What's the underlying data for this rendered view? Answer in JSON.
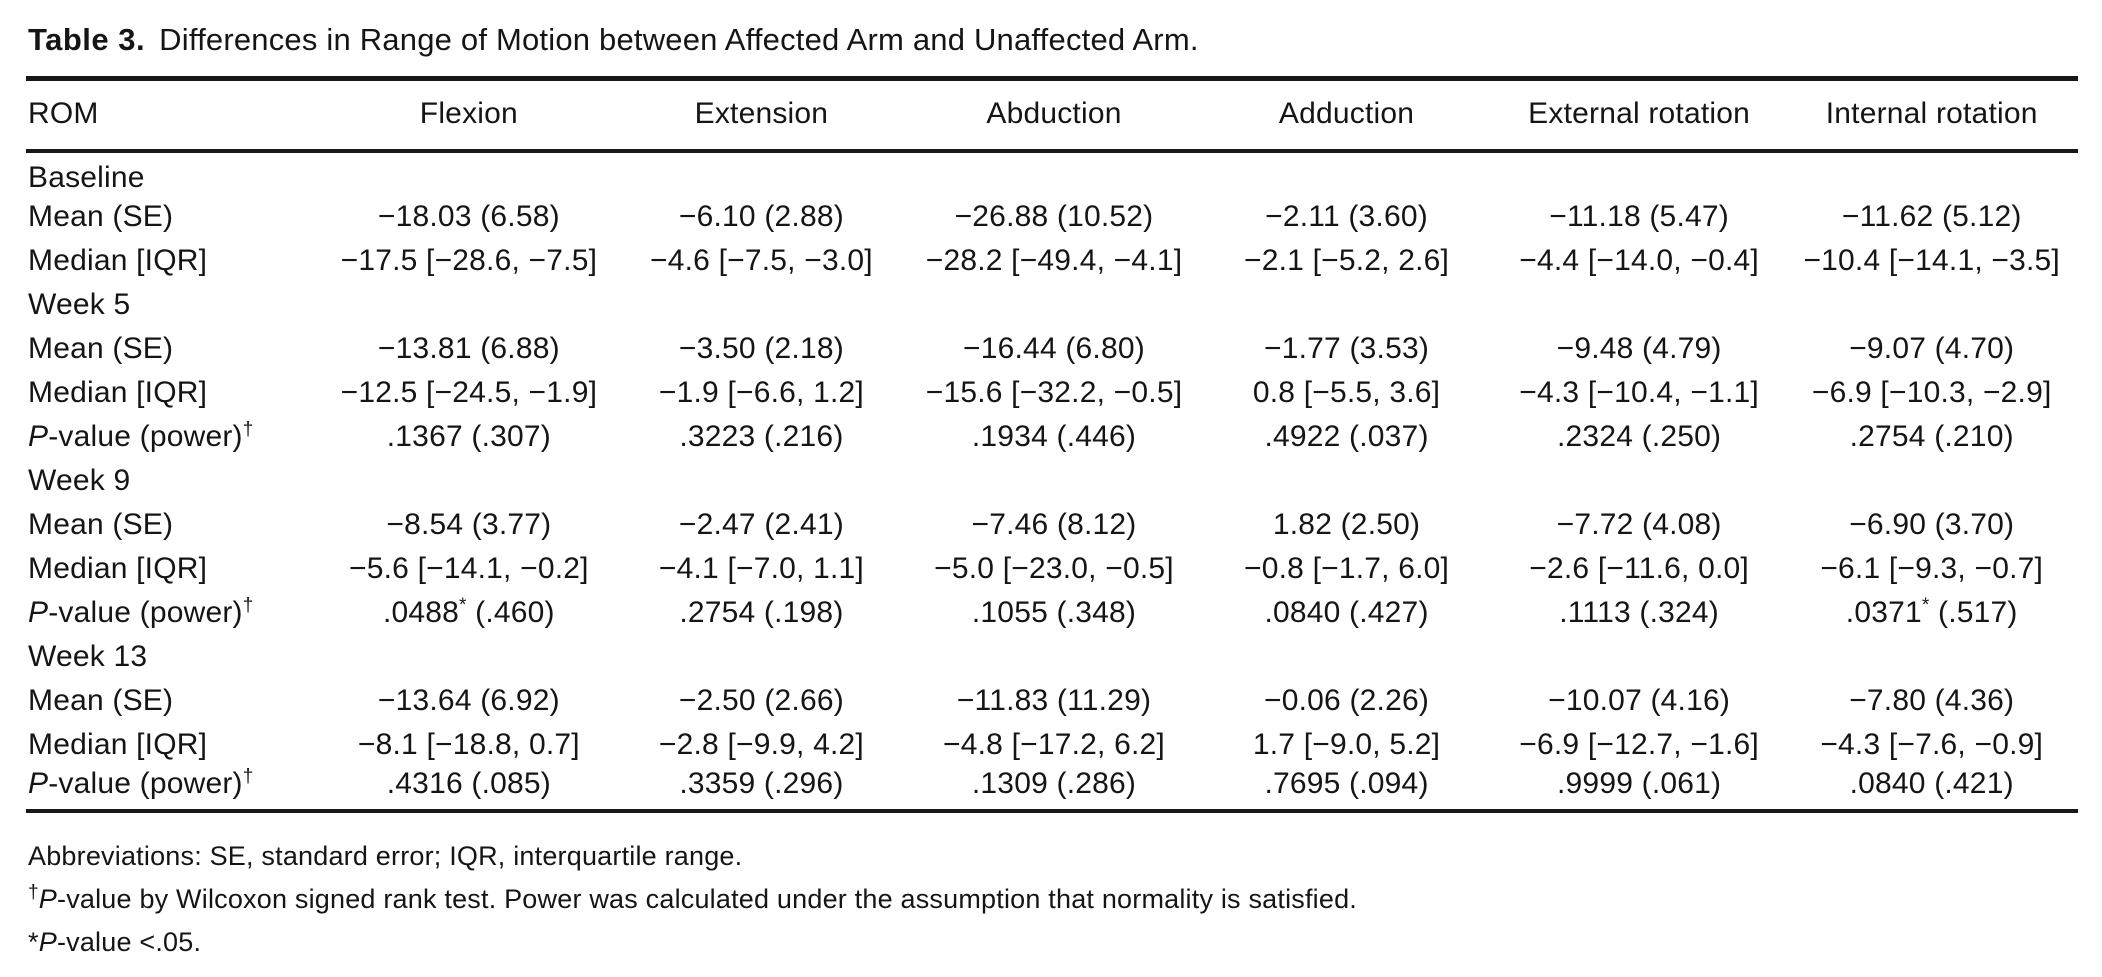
{
  "title": {
    "label": "Table 3.",
    "text": "Differences in Range of Motion between Affected Arm and Unaffected Arm."
  },
  "table": {
    "columns": [
      "ROM",
      "Flexion",
      "Extension",
      "Abduction",
      "Adduction",
      "External rotation",
      "Internal rotation"
    ],
    "sections": [
      {
        "name": "Baseline",
        "rows": [
          {
            "label": "Mean (SE)",
            "cells": [
              "−18.03 (6.58)",
              "−6.10 (2.88)",
              "−26.88 (10.52)",
              "−2.11 (3.60)",
              "−11.18 (5.47)",
              "−11.62 (5.12)"
            ]
          },
          {
            "label": "Median [IQR]",
            "cells": [
              "−17.5 [−28.6, −7.5]",
              "−4.6 [−7.5, −3.0]",
              "−28.2 [−49.4, −4.1]",
              "−2.1 [−5.2, 2.6]",
              "−4.4 [−14.0, −0.4]",
              "−10.4 [−14.1, −3.5]"
            ]
          }
        ]
      },
      {
        "name": "Week 5",
        "rows": [
          {
            "label": "Mean (SE)",
            "cells": [
              "−13.81 (6.88)",
              "−3.50 (2.18)",
              "−16.44 (6.80)",
              "−1.77 (3.53)",
              "−9.48 (4.79)",
              "−9.07 (4.70)"
            ]
          },
          {
            "label": "Median [IQR]",
            "cells": [
              "−12.5 [−24.5, −1.9]",
              "−1.9 [−6.6, 1.2]",
              "−15.6 [−32.2, −0.5]",
              "0.8 [−5.5, 3.6]",
              "−4.3 [−10.4, −1.1]",
              "−6.9 [−10.3, −2.9]"
            ]
          },
          {
            "label": "P-value (power)^†",
            "cells": [
              ".1367 (.307)",
              ".3223 (.216)",
              ".1934 (.446)",
              ".4922 (.037)",
              ".2324 (.250)",
              ".2754 (.210)"
            ]
          }
        ]
      },
      {
        "name": "Week 9",
        "rows": [
          {
            "label": "Mean (SE)",
            "cells": [
              "−8.54 (3.77)",
              "−2.47 (2.41)",
              "−7.46 (8.12)",
              "1.82 (2.50)",
              "−7.72 (4.08)",
              "−6.90 (3.70)"
            ]
          },
          {
            "label": "Median [IQR]",
            "cells": [
              "−5.6 [−14.1, −0.2]",
              "−4.1 [−7.0, 1.1]",
              "−5.0 [−23.0, −0.5]",
              "−0.8 [−1.7, 6.0]",
              "−2.6 [−11.6, 0.0]",
              "−6.1 [−9.3, −0.7]"
            ]
          },
          {
            "label": "P-value (power)^†",
            "cells": [
              ".0488^* (.460)",
              ".2754 (.198)",
              ".1055 (.348)",
              ".0840 (.427)",
              ".1113 (.324)",
              ".0371^* (.517)"
            ]
          }
        ]
      },
      {
        "name": "Week 13",
        "rows": [
          {
            "label": "Mean (SE)",
            "cells": [
              "−13.64 (6.92)",
              "−2.50 (2.66)",
              "−11.83 (11.29)",
              "−0.06 (2.26)",
              "−10.07 (4.16)",
              "−7.80 (4.36)"
            ]
          },
          {
            "label": "Median [IQR]",
            "cells": [
              "−8.1 [−18.8, 0.7]",
              "−2.8 [−9.9, 4.2]",
              "−4.8 [−17.2, 6.2]",
              "1.7 [−9.0, 5.2]",
              "−6.9 [−12.7, −1.6]",
              "−4.3 [−7.6, −0.9]"
            ]
          },
          {
            "label": "P-value (power)^†",
            "cells": [
              ".4316 (.085)",
              ".3359 (.296)",
              ".1309 (.286)",
              ".7695 (.094)",
              ".9999 (.061)",
              ".0840 (.421)"
            ]
          }
        ]
      }
    ]
  },
  "footnotes": [
    "Abbreviations: SE, standard error; IQR, interquartile range.",
    "^†P-value by Wilcoxon signed rank test. Power was calculated under the assumption that normality is satisfied.",
    "*P-value <.05."
  ],
  "colors": {
    "text": "#151515",
    "rule": "#181818",
    "background": "#ffffff"
  }
}
